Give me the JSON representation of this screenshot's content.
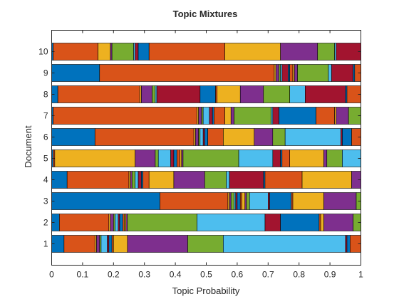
{
  "chart_data": {
    "type": "bar",
    "orientation": "horizontal",
    "stacked": true,
    "title": "Topic Mixtures",
    "xlabel": "Topic Probability",
    "ylabel": "Document",
    "xlim": [
      0,
      1
    ],
    "xticks": [
      "0",
      "0.1",
      "0.2",
      "0.3",
      "0.4",
      "0.5",
      "0.6",
      "0.7",
      "0.8",
      "0.9",
      "1"
    ],
    "categories": [
      "1",
      "2",
      "3",
      "4",
      "5",
      "6",
      "7",
      "8",
      "9",
      "10"
    ],
    "grid": false,
    "legend": "none",
    "colors": [
      "#0072BD",
      "#D95319",
      "#EDB120",
      "#7E2F8E",
      "#77AC30",
      "#4DBEEE",
      "#A2142F"
    ],
    "documents": [
      {
        "document": "1",
        "segments": [
          0.04,
          0.1,
          0.005,
          0.01,
          0.005,
          0.02,
          0.005,
          0.01,
          0.005,
          0.045,
          0.195,
          0.115,
          0.395,
          0.005,
          0.01,
          0.035
        ]
      },
      {
        "document": "2",
        "segments": [
          0.025,
          0.16,
          0.005,
          0.01,
          0.005,
          0.01,
          0.005,
          0.01,
          0.005,
          0.005,
          0.005,
          0.225,
          0.22,
          0.05,
          0.125,
          0.005,
          0.01,
          0.095,
          0.025
        ]
      },
      {
        "document": "3",
        "segments": [
          0.35,
          0.22,
          0.005,
          0.005,
          0.01,
          0.005,
          0.005,
          0.01,
          0.005,
          0.01,
          0.005,
          0.01,
          0.06,
          0.005,
          0.07,
          0.005,
          0.1,
          0.105,
          0.015
        ]
      },
      {
        "document": "4",
        "segments": [
          0.05,
          0.2,
          0.005,
          0.005,
          0.01,
          0.01,
          0.01,
          0.005,
          0.02,
          0.08,
          0.1,
          0.07,
          0.01,
          0.11,
          0.005,
          0.12,
          0.16,
          0.03
        ]
      },
      {
        "document": "5",
        "segments": [
          0.005,
          0.005,
          0.26,
          0.065,
          0.01,
          0.04,
          0.01,
          0.01,
          0.01,
          0.005,
          0.005,
          0.18,
          0.11,
          0.025,
          0.005,
          0.025,
          0.11,
          0.01,
          0.05,
          0.06
        ]
      },
      {
        "document": "6",
        "segments": [
          0.14,
          0.32,
          0.005,
          0.01,
          0.005,
          0.01,
          0.005,
          0.01,
          0.05,
          0.1,
          0.06,
          0.04,
          0.18,
          0.005,
          0.03,
          0.03
        ]
      },
      {
        "document": "7",
        "segments": [
          0.005,
          0.465,
          0.005,
          0.01,
          0.005,
          0.02,
          0.01,
          0.005,
          0.035,
          0.02,
          0.01,
          0.12,
          0.005,
          0.02,
          0.12,
          0.06,
          0.005,
          0.04,
          0.04
        ]
      },
      {
        "document": "8",
        "segments": [
          0.02,
          0.265,
          0.005,
          0.035,
          0.01,
          0.005,
          0.14,
          0.05,
          0.005,
          0.075,
          0.075,
          0.085,
          0.05,
          0.13,
          0.005,
          0.045
        ]
      },
      {
        "document": "9",
        "segments": [
          0.155,
          0.565,
          0.005,
          0.01,
          0.005,
          0.005,
          0.02,
          0.005,
          0.01,
          0.005,
          0.01,
          0.1,
          0.01,
          0.07,
          0.005,
          0.02
        ]
      },
      {
        "document": "10",
        "segments": [
          0.005,
          0.145,
          0.04,
          0.005,
          0.07,
          0.005,
          0.01,
          0.035,
          0.245,
          0.18,
          0.12,
          0.055,
          0.005,
          0.08
        ]
      }
    ]
  }
}
